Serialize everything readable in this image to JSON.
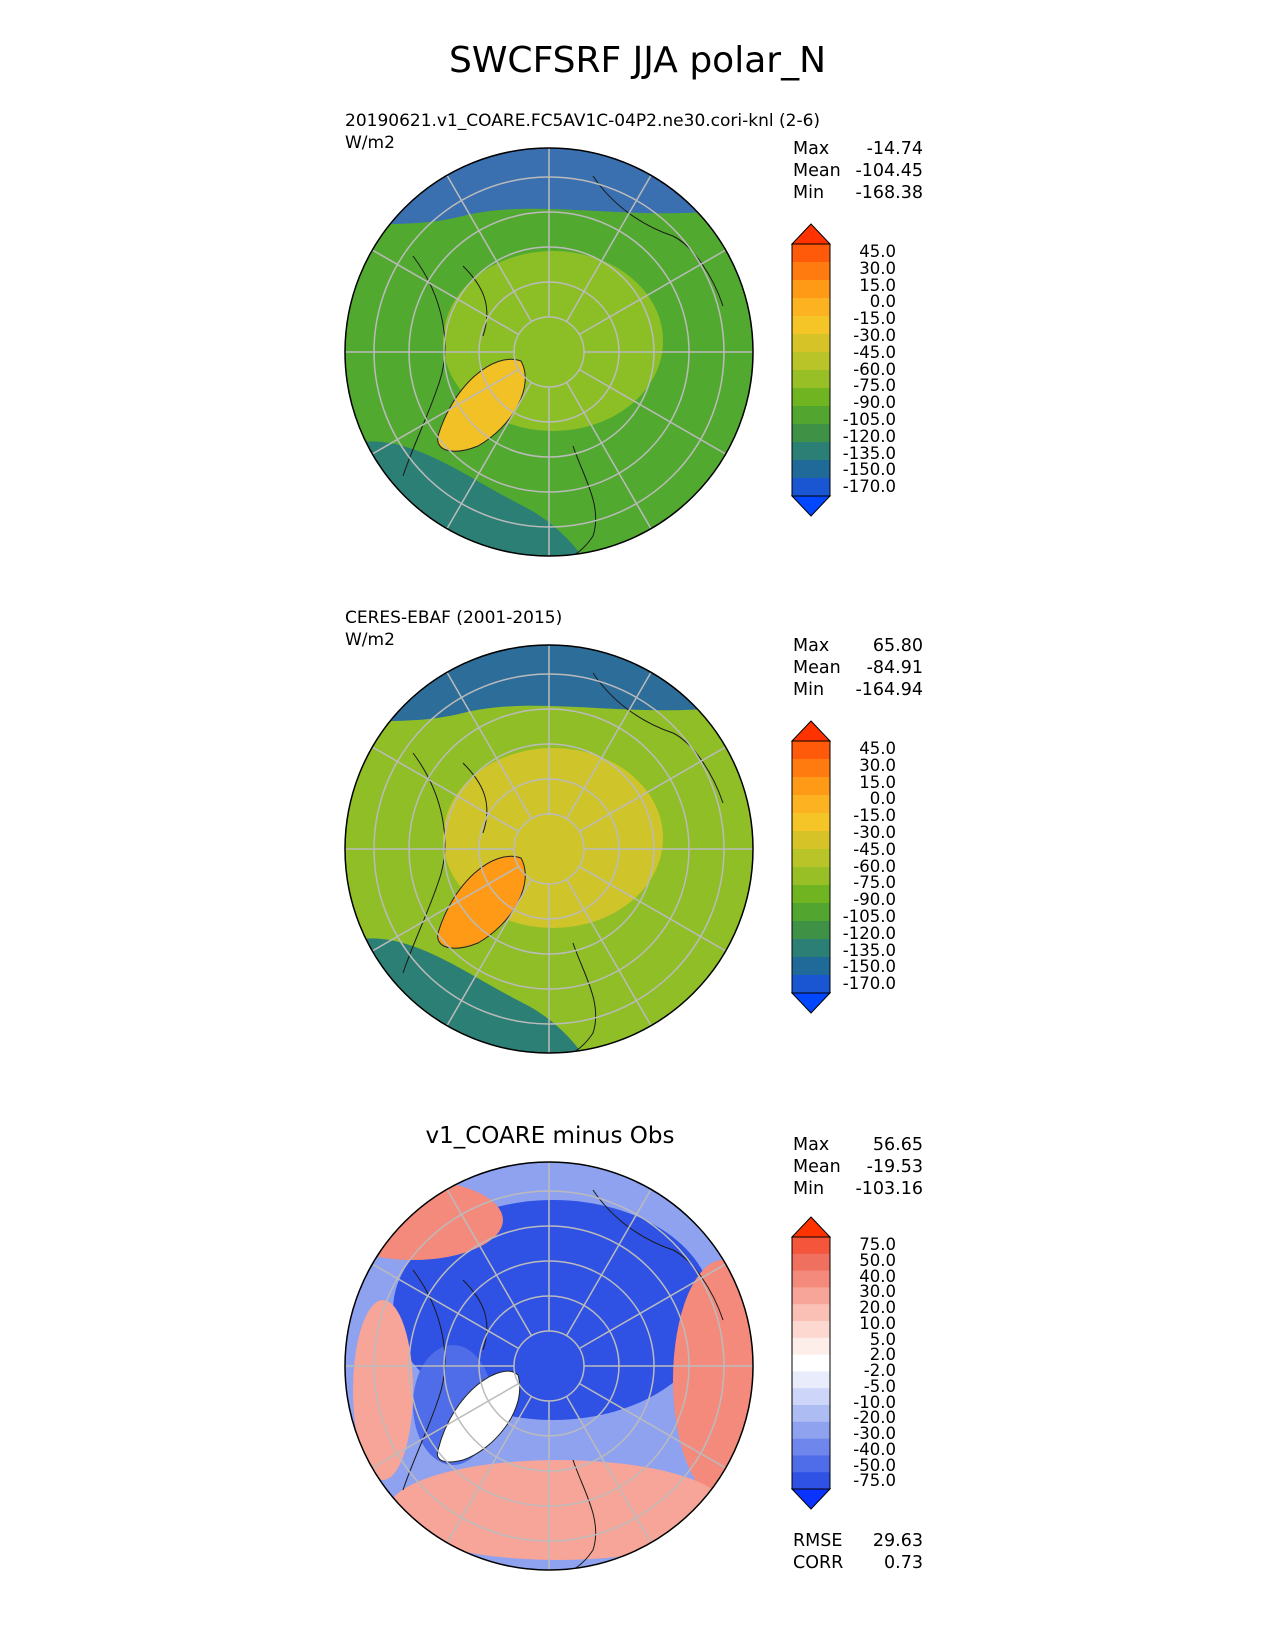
{
  "title": "SWCFSRF JJA polar_N",
  "panels": [
    {
      "run_name": "20190621.v1_COARE.FC5AV1C-04P2.ne30.cori-knl (2-6)",
      "units": "W/m2",
      "stats": {
        "max_label": "Max",
        "max": "-14.74",
        "mean_label": "Mean",
        "mean": "-104.45",
        "min_label": "Min",
        "min": "-168.38"
      },
      "colorbar": {
        "labels": [
          "45.0",
          "30.0",
          "15.0",
          "0.0",
          "-15.0",
          "-30.0",
          "-45.0",
          "-60.0",
          "-75.0",
          "-90.0",
          "-105.0",
          "-120.0",
          "-135.0",
          "-150.0",
          "-170.0"
        ],
        "colors": [
          "#ff3300",
          "#ff5a0a",
          "#ff7a0f",
          "#ff9a17",
          "#fdb222",
          "#f5c426",
          "#d6c327",
          "#b9c428",
          "#98bf25",
          "#71b422",
          "#52a630",
          "#3f9146",
          "#2c7f74",
          "#1f6a98",
          "#1a55d2",
          "#0047ff"
        ]
      },
      "map": {
        "background": "#52a930",
        "regions": [
          {
            "name": "greenland",
            "color": "#f2c125"
          },
          {
            "name": "north-atlantic",
            "color": "#2c7f74"
          },
          {
            "name": "pacific",
            "color": "#3a6fb0"
          },
          {
            "name": "arctic-ocean",
            "color": "#8cbf26"
          }
        ]
      }
    },
    {
      "run_name": "CERES-EBAF (2001-2015)",
      "units": "W/m2",
      "stats": {
        "max_label": "Max",
        "max": "65.80",
        "mean_label": "Mean",
        "mean": "-84.91",
        "min_label": "Min",
        "min": "-164.94"
      },
      "colorbar": {
        "labels": [
          "45.0",
          "30.0",
          "15.0",
          "0.0",
          "-15.0",
          "-30.0",
          "-45.0",
          "-60.0",
          "-75.0",
          "-90.0",
          "-105.0",
          "-120.0",
          "-135.0",
          "-150.0",
          "-170.0"
        ],
        "colors": [
          "#ff3300",
          "#ff5a0a",
          "#ff7a0f",
          "#ff9a17",
          "#fdb222",
          "#f5c426",
          "#d6c327",
          "#b9c428",
          "#98bf25",
          "#71b422",
          "#52a630",
          "#3f9146",
          "#2c7f74",
          "#1f6a98",
          "#1a55d2",
          "#0047ff"
        ]
      },
      "map": {
        "background": "#8fbe26",
        "regions": [
          {
            "name": "greenland",
            "color": "#ff9a17"
          },
          {
            "name": "north-atlantic",
            "color": "#2c7f74"
          },
          {
            "name": "pacific",
            "color": "#2d6d9a"
          },
          {
            "name": "arctic-ocean",
            "color": "#cfc52a"
          }
        ]
      }
    },
    {
      "title": "v1_COARE minus Obs",
      "stats": {
        "max_label": "Max",
        "max": "56.65",
        "mean_label": "Mean",
        "mean": "-19.53",
        "min_label": "Min",
        "min": "-103.16"
      },
      "colorbar": {
        "labels": [
          "75.0",
          "50.0",
          "40.0",
          "30.0",
          "20.0",
          "10.0",
          "5.0",
          "2.0",
          "-2.0",
          "-5.0",
          "-10.0",
          "-20.0",
          "-30.0",
          "-40.0",
          "-50.0",
          "-75.0"
        ],
        "colors": [
          "#ff3300",
          "#f5553a",
          "#f07060",
          "#f48a7c",
          "#f7a598",
          "#fac0b5",
          "#fcd8d0",
          "#fdeeea",
          "#ffffff",
          "#e8ecfb",
          "#cdd6f8",
          "#aebcf4",
          "#8ea2f0",
          "#6f87ec",
          "#4f6de8",
          "#2f52e4",
          "#0a33ff"
        ]
      },
      "map": {
        "background": "#8ea2f0",
        "regions": [
          {
            "name": "arctic-ocean",
            "color": "#2f52e4"
          },
          {
            "name": "siberia",
            "color": "#f48a7c"
          },
          {
            "name": "canada",
            "color": "#4f6de8"
          },
          {
            "name": "greenland",
            "color": "#ffffff"
          },
          {
            "name": "europe",
            "color": "#f7a598"
          }
        ]
      },
      "footer": {
        "rmse_label": "RMSE",
        "rmse": "29.63",
        "corr_label": "CORR",
        "corr": "0.73"
      }
    }
  ]
}
